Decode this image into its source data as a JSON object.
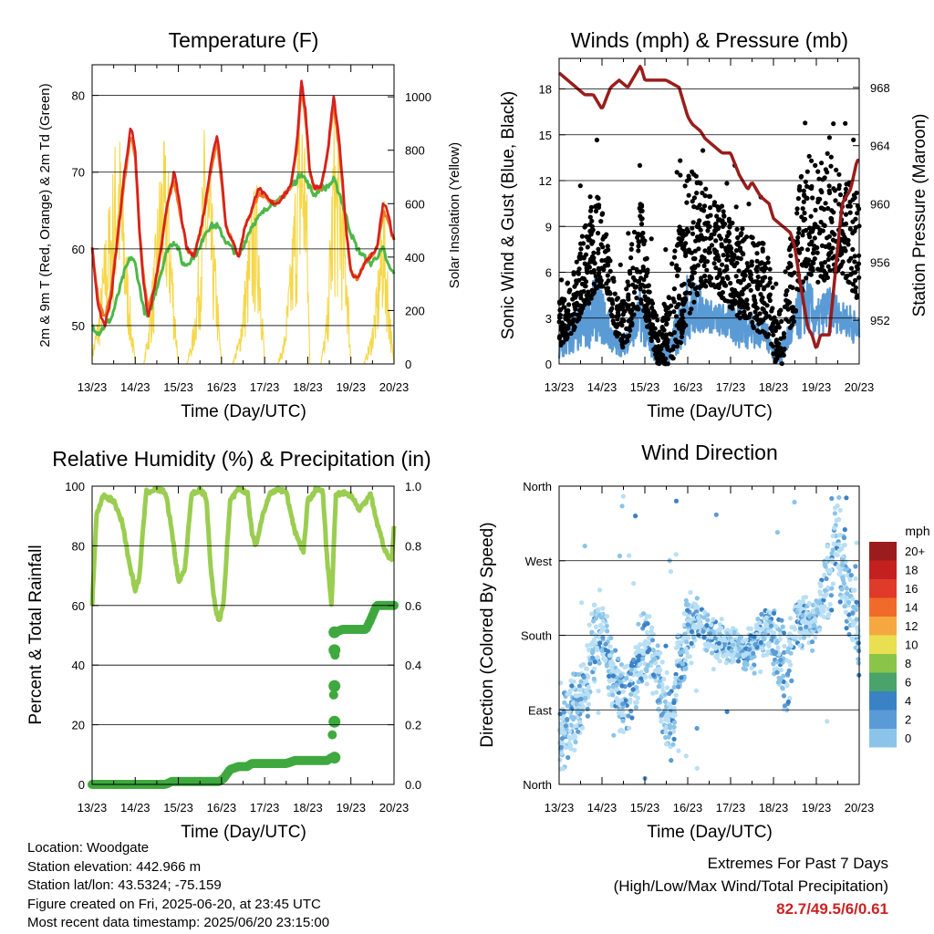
{
  "colors": {
    "temp2m": "#d62020",
    "temp9m": "#f07a20",
    "dewpoint": "#4db848",
    "solar": "#f5d74a",
    "gust": "#000000",
    "wind": "#5b9bd5",
    "pressure": "#9b1c1c",
    "rh": "#9acd50",
    "precip": "#3fa83f",
    "scale": [
      "#b8dff5",
      "#8bc4e8",
      "#5b9bd5",
      "#3a82c4",
      "#4aa36a",
      "#8ac54a",
      "#e8e050",
      "#f5a840",
      "#f06a2a",
      "#e03a2a",
      "#c42020",
      "#9b1c1c"
    ]
  },
  "time_ticks": [
    "13/23",
    "14/23",
    "15/23",
    "16/23",
    "17/23",
    "18/23",
    "19/23",
    "20/23"
  ],
  "chart_data": [
    {
      "id": "temperature",
      "type": "line",
      "title": "Temperature (F)",
      "xlabel": "Time (Day/UTC)",
      "ylabel_left": "2m & 9m T (Red, Orange) & 2m Td (Green)",
      "ylabel_right": "Solar Insolation (Yellow)",
      "xlim": [
        0,
        7
      ],
      "ylim": [
        45,
        84
      ],
      "ylim_right": [
        0,
        1120
      ],
      "yticks": [
        50,
        60,
        70,
        80
      ],
      "yticks_right": [
        0,
        200,
        400,
        600,
        800,
        1000
      ],
      "x": [
        0,
        0.15,
        0.3,
        0.45,
        0.6,
        0.75,
        0.9,
        1.0,
        1.1,
        1.2,
        1.3,
        1.45,
        1.6,
        1.75,
        1.9,
        2.0,
        2.1,
        2.2,
        2.35,
        2.5,
        2.6,
        2.75,
        2.9,
        3.0,
        3.1,
        3.25,
        3.4,
        3.55,
        3.7,
        3.85,
        4.0,
        4.15,
        4.3,
        4.45,
        4.6,
        4.75,
        4.85,
        4.95,
        5.05,
        5.15,
        5.3,
        5.45,
        5.6,
        5.75,
        5.9,
        6.0,
        6.15,
        6.3,
        6.45,
        6.6,
        6.75,
        6.85,
        6.95,
        7.0
      ],
      "series": [
        {
          "name": "2m T",
          "values": [
            60,
            52,
            50,
            54,
            62,
            70,
            76,
            73,
            62,
            55,
            51,
            55,
            60,
            66,
            70,
            67,
            63,
            60,
            59,
            62,
            65,
            71,
            75,
            70,
            63,
            61,
            59,
            63,
            65,
            68,
            67,
            66,
            66,
            67,
            68,
            74,
            82,
            78,
            70,
            68,
            68,
            72,
            80,
            73,
            62,
            57,
            56,
            58,
            59,
            60,
            66,
            65,
            62,
            61
          ]
        },
        {
          "name": "9m T",
          "values": [
            60,
            53,
            51,
            55,
            62,
            69,
            75,
            72,
            62,
            56,
            52,
            55,
            60,
            66,
            69,
            66,
            63,
            60,
            59,
            62,
            65,
            70,
            74,
            69,
            63,
            61,
            59,
            63,
            65,
            67,
            67,
            66,
            66,
            67,
            68,
            73,
            81,
            77,
            70,
            68,
            68,
            72,
            79,
            72,
            62,
            57,
            56,
            58,
            59,
            60,
            65,
            64,
            62,
            61
          ]
        },
        {
          "name": "2m Td",
          "values": [
            50,
            49,
            50,
            51,
            54,
            57,
            59,
            58,
            55,
            52,
            51,
            54,
            57,
            60,
            61,
            60,
            58,
            58,
            59,
            60,
            62,
            63,
            63,
            62,
            61,
            60,
            59,
            61,
            63,
            64,
            65,
            66,
            66,
            67,
            68,
            69,
            70,
            69,
            68,
            67,
            68,
            68,
            69,
            67,
            64,
            62,
            60,
            59,
            58,
            59,
            60,
            58,
            57,
            57
          ]
        },
        {
          "name": "Solar",
          "values": [
            50,
            200,
            500,
            700,
            1000,
            600,
            200,
            0,
            0,
            0,
            150,
            450,
            850,
            820,
            300,
            0,
            0,
            0,
            150,
            500,
            900,
            700,
            300,
            0,
            0,
            0,
            100,
            350,
            650,
            700,
            0,
            0,
            0,
            100,
            400,
            850,
            1080,
            950,
            0,
            0,
            0,
            200,
            950,
            850,
            500,
            0,
            0,
            0,
            100,
            300,
            700,
            400,
            100,
            0
          ]
        }
      ]
    },
    {
      "id": "winds",
      "type": "scatter",
      "title": "Winds (mph) & Pressure (mb)",
      "xlabel": "Time (Day/UTC)",
      "ylabel_left": "Sonic Wind & Gust (Blue, Black)",
      "ylabel_right": "Station Pressure (Maroon)",
      "xlim": [
        0,
        7
      ],
      "ylim": [
        0,
        20
      ],
      "ylim_right": [
        949,
        970
      ],
      "yticks": [
        0,
        3,
        6,
        9,
        12,
        15,
        18
      ],
      "yticks_right": [
        952,
        956,
        960,
        964,
        968
      ],
      "pressure": {
        "x": [
          0,
          0.2,
          0.4,
          0.6,
          0.8,
          0.9,
          1.0,
          1.2,
          1.4,
          1.6,
          1.8,
          1.9,
          2.0,
          2.2,
          2.5,
          2.8,
          2.9,
          3.0,
          3.1,
          3.3,
          3.4,
          3.6,
          3.8,
          4.0,
          4.2,
          4.4,
          4.5,
          4.7,
          4.9,
          5.0,
          5.2,
          5.4,
          5.5,
          5.6,
          5.8,
          5.9,
          6.0,
          6.1,
          6.2,
          6.3,
          6.5,
          6.6,
          6.8,
          6.95,
          7.0
        ],
        "values": [
          969,
          968.5,
          968,
          967.5,
          967.5,
          967,
          966.5,
          968,
          968.5,
          968,
          969,
          969.5,
          968.5,
          968.5,
          968.5,
          968,
          967,
          966,
          965.5,
          965,
          964.5,
          964,
          963.5,
          963.5,
          962,
          961,
          961.5,
          960.5,
          960,
          959,
          958.5,
          958,
          957,
          955,
          951.5,
          951,
          950,
          951,
          951,
          951,
          957,
          960,
          961,
          963,
          963
        ]
      },
      "gust_envelope": {
        "x": [
          0,
          0.3,
          0.7,
          0.9,
          1.1,
          1.3,
          1.5,
          1.7,
          1.9,
          2.0,
          2.1,
          2.3,
          2.6,
          2.8,
          3.0,
          3.3,
          3.6,
          3.9,
          4.2,
          4.4,
          4.6,
          4.8,
          4.95,
          5.05,
          5.2,
          5.4,
          5.6,
          5.8,
          6.0,
          6.2,
          6.4,
          6.6,
          6.8,
          7.0
        ],
        "low": [
          1,
          2,
          4,
          5,
          5,
          2,
          1,
          2,
          4,
          3,
          2,
          0,
          0,
          1,
          3,
          5,
          5,
          4,
          3,
          3,
          2,
          2,
          1,
          0,
          0,
          2,
          4,
          6,
          5,
          5,
          6,
          6,
          5,
          4
        ],
        "high": [
          4,
          6,
          10,
          11,
          9,
          5,
          4,
          8,
          11,
          9,
          5,
          3,
          5,
          10,
          13,
          12,
          11,
          10,
          9,
          9,
          8,
          8,
          6,
          3,
          4,
          9,
          12,
          14,
          13,
          14,
          16,
          12,
          12,
          11
        ]
      },
      "wind_envelope": {
        "x": [
          0,
          0.3,
          0.7,
          0.9,
          1.1,
          1.3,
          1.5,
          1.7,
          1.9,
          2.0,
          2.1,
          2.3,
          2.6,
          2.8,
          3.0,
          3.3,
          3.6,
          3.9,
          4.2,
          4.4,
          4.6,
          4.8,
          4.95,
          5.05,
          5.2,
          5.4,
          5.6,
          5.8,
          6.0,
          6.2,
          6.4,
          6.6,
          6.8,
          7.0
        ],
        "low": [
          0,
          0.5,
          1,
          1.5,
          1,
          0.5,
          0.5,
          1,
          1.5,
          1,
          0.5,
          0,
          0,
          0.5,
          1.5,
          2,
          2,
          1.5,
          1,
          1,
          1,
          1,
          0.5,
          0,
          0,
          1,
          1.5,
          2,
          1.5,
          2,
          2,
          2,
          1.5,
          1
        ],
        "high": [
          2,
          3,
          5,
          6,
          4,
          2,
          2,
          3,
          5,
          4,
          2,
          1,
          2,
          4,
          6,
          5,
          4,
          4,
          4,
          4,
          3,
          3,
          2,
          1,
          2,
          3,
          5,
          6,
          4,
          5,
          5,
          4,
          4,
          3
        ]
      }
    },
    {
      "id": "humidity",
      "type": "line",
      "title": "Relative Humidity (%) & Precipitation (in)",
      "xlabel": "Time (Day/UTC)",
      "ylabel_left": "Percent & Total Rainfall",
      "xlim": [
        0,
        7
      ],
      "ylim": [
        0,
        100
      ],
      "ylim_right": [
        0,
        1.0
      ],
      "yticks": [
        0,
        20,
        40,
        60,
        80,
        100
      ],
      "yticks_right": [
        0.0,
        0.2,
        0.4,
        0.6,
        0.8,
        1.0
      ],
      "x": [
        0,
        0.1,
        0.25,
        0.5,
        0.7,
        0.85,
        1.0,
        1.1,
        1.25,
        1.5,
        1.7,
        1.85,
        2.0,
        2.15,
        2.3,
        2.5,
        2.65,
        2.75,
        2.85,
        2.95,
        3.05,
        3.2,
        3.4,
        3.6,
        3.7,
        3.8,
        3.95,
        4.1,
        4.3,
        4.5,
        4.7,
        4.9,
        5.0,
        5.2,
        5.35,
        5.45,
        5.55,
        5.65,
        5.8,
        6.0,
        6.2,
        6.35,
        6.45,
        6.6,
        6.8,
        6.95,
        7.0
      ],
      "series": [
        {
          "name": "RH",
          "values": [
            60,
            90,
            97,
            95,
            88,
            75,
            65,
            70,
            98,
            99,
            98,
            85,
            68,
            72,
            97,
            99,
            96,
            72,
            60,
            54,
            62,
            95,
            99,
            98,
            85,
            80,
            90,
            97,
            99,
            98,
            85,
            78,
            95,
            99,
            98,
            75,
            60,
            97,
            98,
            97,
            92,
            95,
            98,
            88,
            78,
            75,
            87
          ]
        },
        {
          "name": "Precip",
          "values": [
            0,
            0,
            0,
            0,
            0,
            0,
            0,
            0,
            0,
            0,
            0,
            0.01,
            0.01,
            0.01,
            0.01,
            0.01,
            0.01,
            0.01,
            0.01,
            0.01,
            0.02,
            0.05,
            0.06,
            0.06,
            0.07,
            0.07,
            0.07,
            0.07,
            0.07,
            0.07,
            0.08,
            0.08,
            0.08,
            0.08,
            0.08,
            0.08,
            0.09,
            0.51,
            0.52,
            0.52,
            0.52,
            0.52,
            0.55,
            0.6,
            0.6,
            0.6,
            0.6
          ]
        }
      ],
      "precip_jump": [
        0.09,
        0.21,
        0.33,
        0.45,
        0.51
      ]
    },
    {
      "id": "direction",
      "type": "scatter",
      "title": "Wind Direction",
      "xlabel": "Time (Day/UTC)",
      "ylabel_left": "Direction (Colored By Speed)",
      "xlim": [
        0,
        7
      ],
      "ylim": [
        0,
        360
      ],
      "ytick_labels": [
        "North",
        "East",
        "South",
        "West",
        "North"
      ],
      "yticks": [
        0,
        90,
        180,
        270,
        360
      ],
      "center": {
        "x": [
          0,
          0.3,
          0.6,
          0.8,
          1.0,
          1.2,
          1.4,
          1.6,
          1.8,
          2.0,
          2.2,
          2.4,
          2.6,
          2.8,
          3.0,
          3.2,
          3.5,
          3.8,
          4.0,
          4.3,
          4.6,
          4.9,
          5.1,
          5.3,
          5.5,
          5.7,
          5.9,
          6.1,
          6.3,
          6.5,
          6.7,
          6.9,
          7.0
        ],
        "values": [
          70,
          80,
          110,
          170,
          190,
          140,
          110,
          100,
          140,
          170,
          150,
          110,
          70,
          140,
          190,
          200,
          180,
          170,
          170,
          160,
          170,
          190,
          160,
          120,
          190,
          200,
          190,
          220,
          250,
          300,
          240,
          200,
          170
        ],
        "spread": [
          60,
          60,
          60,
          60,
          50,
          50,
          50,
          50,
          50,
          50,
          50,
          60,
          60,
          60,
          50,
          30,
          25,
          25,
          25,
          25,
          30,
          40,
          60,
          60,
          40,
          35,
          30,
          40,
          60,
          70,
          60,
          60,
          50
        ]
      },
      "legend_title": "mph",
      "legend_labels": [
        "20+",
        "18",
        "16",
        "14",
        "12",
        "10",
        "8",
        "6",
        "4",
        "2",
        "0"
      ]
    }
  ],
  "info": {
    "location": "Location: Woodgate",
    "elevation": "Station elevation: 442.966 m",
    "latlon": "Station lat/lon: 43.5324; -75.159",
    "created": "Figure created on Fri, 2025-06-20, at 23:45 UTC",
    "recent": "Most recent data timestamp: 2025/06/20 23:15:00"
  },
  "extremes": {
    "line1": "Extremes For Past 7 Days",
    "line2": "(High/Low/Max Wind/Total Precipitation)",
    "values": "82.7/49.5/6/0.61"
  }
}
